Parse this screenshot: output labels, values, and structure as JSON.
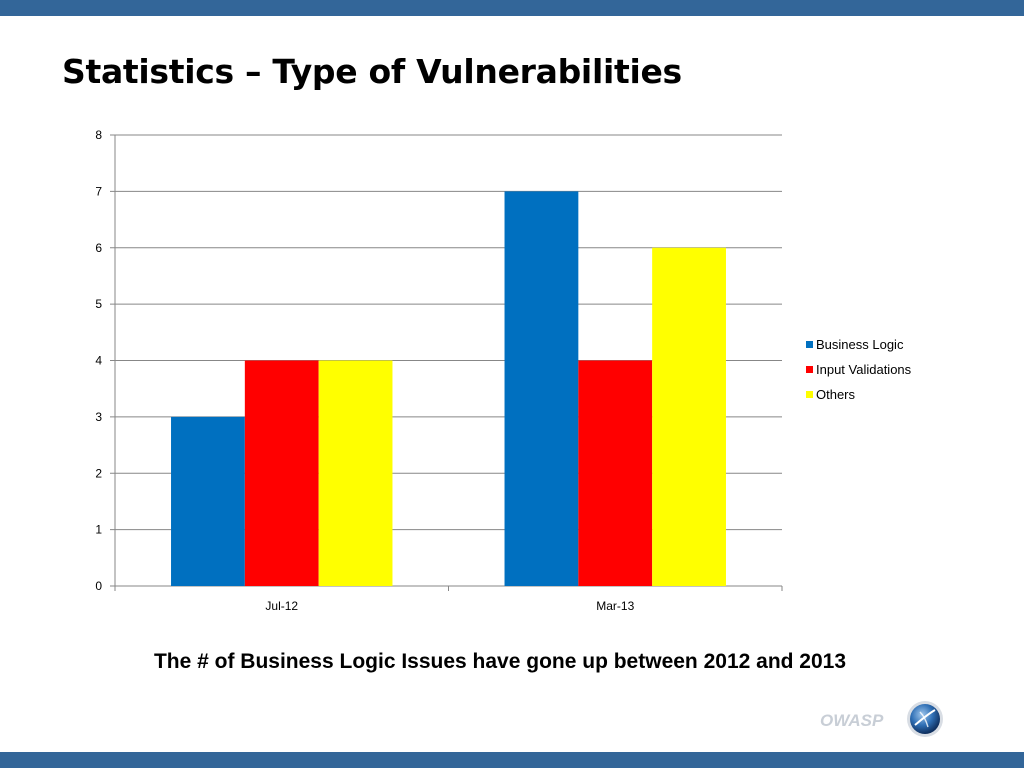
{
  "slide": {
    "title": "Statistics – Type of Vulnerabilities",
    "caption": "The # of Business Logic Issues have gone up between 2012 and 2013",
    "logo_text": "OWASP"
  },
  "colors": {
    "bars": {
      "Business Logic": "#0070C0",
      "Input Validations": "#FF0000",
      "Others": "#FFFF00"
    },
    "theme_bar": "#336699",
    "gridline": "#878787"
  },
  "chart_data": {
    "type": "bar",
    "categories": [
      "Jul-12",
      "Mar-13"
    ],
    "series": [
      {
        "name": "Business Logic",
        "values": [
          3,
          7
        ]
      },
      {
        "name": "Input Validations",
        "values": [
          4,
          4
        ]
      },
      {
        "name": "Others",
        "values": [
          4,
          6
        ]
      }
    ],
    "ylim": [
      0,
      8
    ],
    "yticks": [
      0,
      1,
      2,
      3,
      4,
      5,
      6,
      7,
      8
    ],
    "grid": true,
    "legend": "right"
  }
}
